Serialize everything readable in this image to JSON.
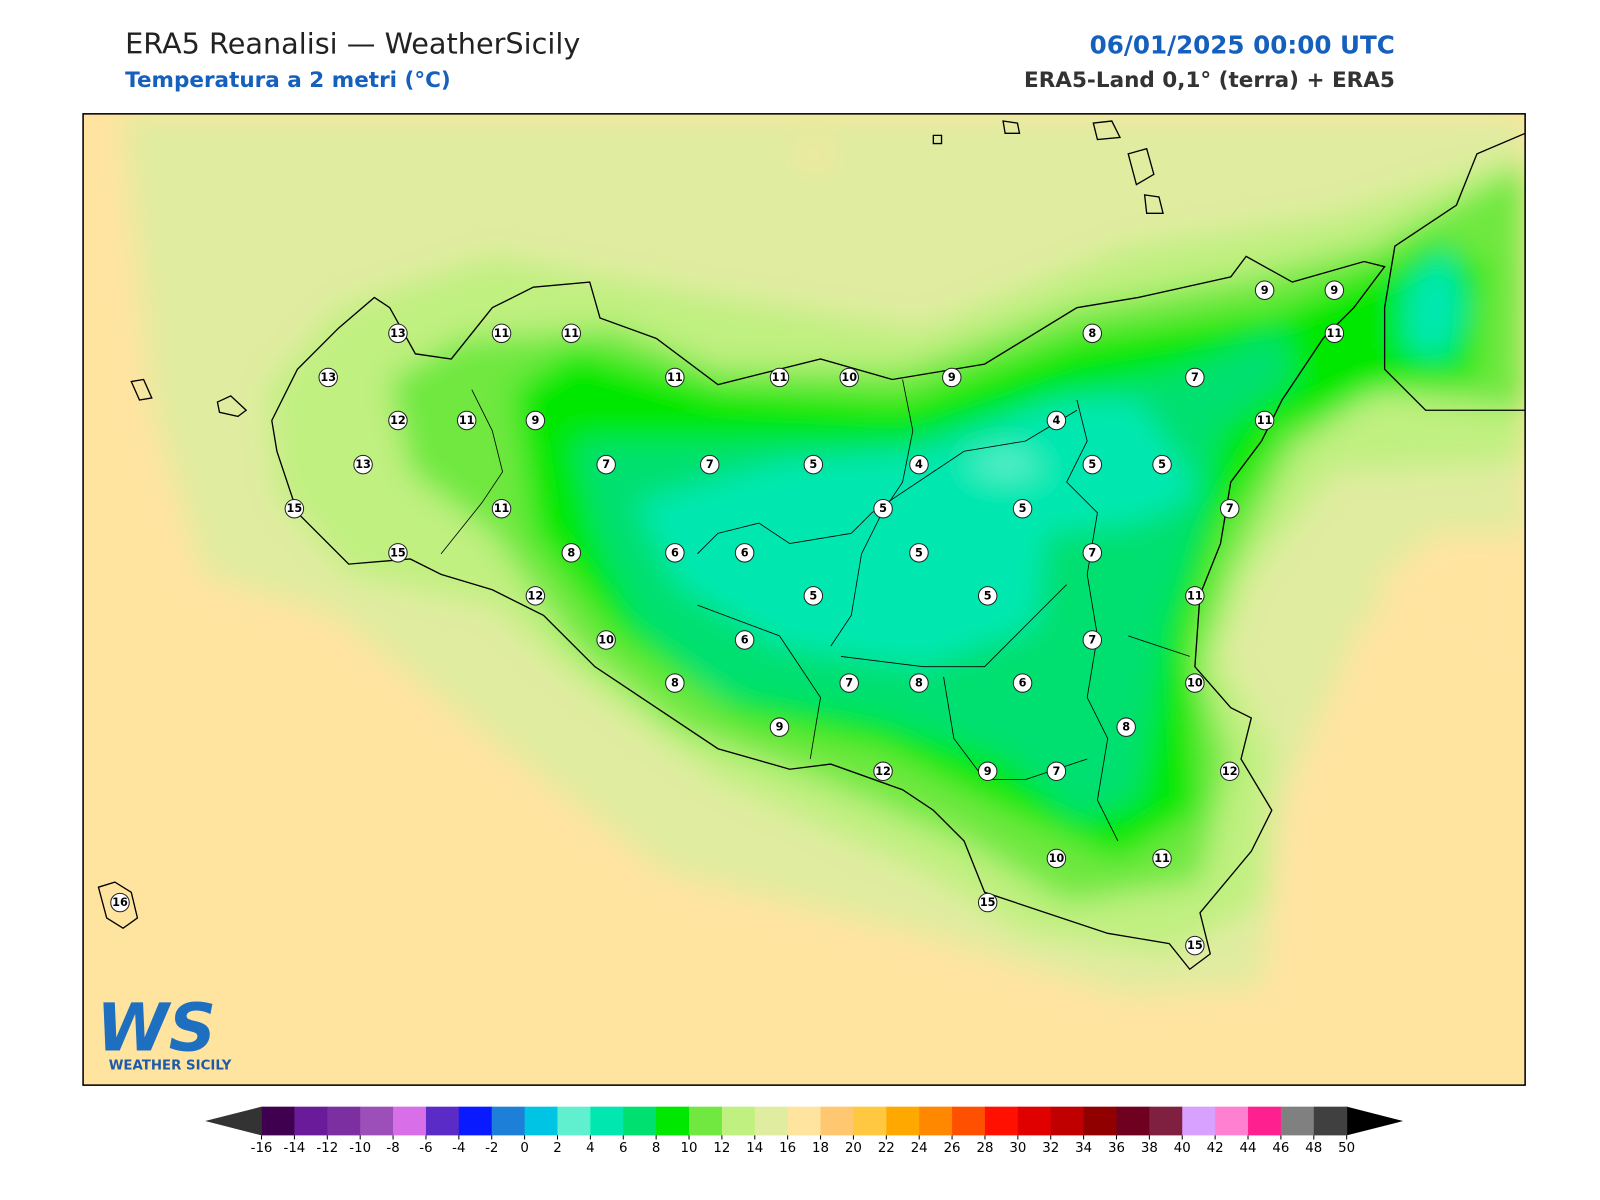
{
  "header": {
    "title": "ERA5 Reanalisi — WeatherSicily",
    "subtitle": "Temperatura a 2 metri (°C)",
    "datetime": "06/01/2025 00:00 UTC",
    "source": "ERA5-Land 0,1° (terra) + ERA5"
  },
  "logo": {
    "mark": "WS",
    "name": "WEATHER SICILY"
  },
  "stations": [
    13,
    11,
    11,
    13,
    11,
    11,
    10,
    9,
    8,
    9,
    9,
    11,
    7,
    12,
    11,
    9,
    4,
    11,
    13,
    7,
    7,
    5,
    4,
    5,
    5,
    15,
    11,
    5,
    5,
    7,
    15,
    8,
    6,
    6,
    5,
    7,
    12,
    5,
    5,
    11,
    10,
    6,
    7,
    8,
    7,
    8,
    6,
    10,
    9,
    8,
    12,
    9,
    7,
    12,
    10,
    11,
    16,
    15,
    15
  ],
  "colorbar": {
    "ticks": [
      -16,
      -14,
      -12,
      -10,
      -8,
      -6,
      -4,
      -2,
      0,
      2,
      4,
      6,
      8,
      10,
      12,
      14,
      16,
      18,
      20,
      22,
      24,
      26,
      28,
      30,
      32,
      34,
      36,
      38,
      40,
      42,
      44,
      46,
      48,
      50
    ],
    "colors": [
      "#3f0050",
      "#6a1b9a",
      "#7b2fa0",
      "#9c4fb8",
      "#d96fe8",
      "#5b2bc8",
      "#0a1aff",
      "#1e7fd8",
      "#00c4e4",
      "#60f0d0",
      "#00e8b0",
      "#00e070",
      "#00e800",
      "#70e840",
      "#c0f080",
      "#e0eca0",
      "#ffe4a0",
      "#ffc870",
      "#ffc840",
      "#ffa800",
      "#ff8800",
      "#ff5000",
      "#ff1000",
      "#e00000",
      "#c00000",
      "#900000",
      "#700020",
      "#802040",
      "#d8a0ff",
      "#ff80d0",
      "#ff2090",
      "#808080",
      "#404040"
    ],
    "under_color": "#333333",
    "over_color": "#000000"
  }
}
